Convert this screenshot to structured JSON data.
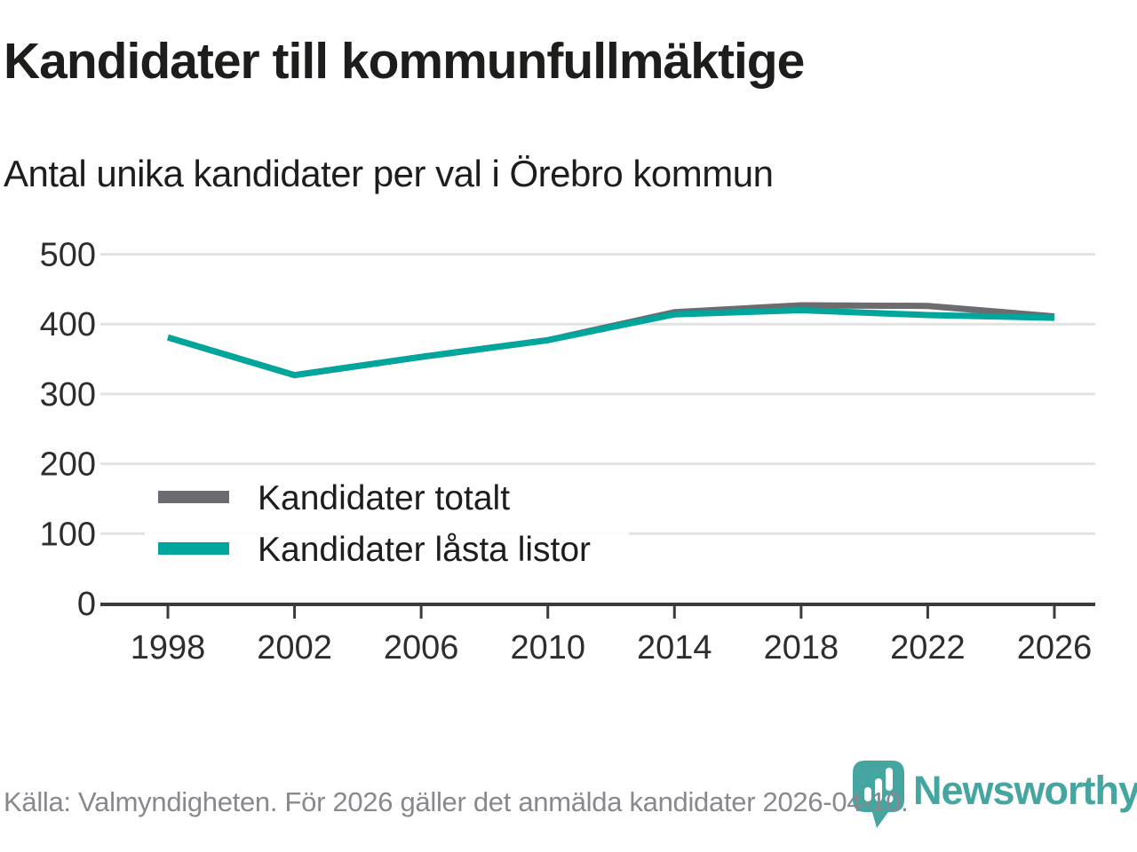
{
  "header": {
    "title": "Kandidater till kommunfullmäktige",
    "subtitle": "Antal unika kandidater per val i Örebro kommun"
  },
  "footer": {
    "source": "Källa: Valmyndigheten. För 2026 gäller det anmälda kandidater 2026-04-10."
  },
  "logo": {
    "brand": "Newsworthy"
  },
  "colors": {
    "accent_teal": "#00a59b",
    "series_gray": "#6b6b70",
    "logo_teal": "#45a5a1",
    "grid": "#e3e3e3",
    "axis": "#3b3b3b",
    "tick_label": "#2d2d2d",
    "text_dark": "#1d1d1b",
    "footer_text": "#88888f",
    "background": "#ffffff"
  },
  "chart_data": {
    "type": "line",
    "title": "Kandidater till kommunfullmäktige",
    "subtitle": "Antal unika kandidater per val i Örebro kommun",
    "categories": [
      "1998",
      "2002",
      "2006",
      "2010",
      "2014",
      "2018",
      "2022",
      "2026"
    ],
    "series": [
      {
        "name": "Kandidater totalt",
        "color": "#6b6b70",
        "values": [
          381,
          327,
          353,
          377,
          417,
          427,
          426,
          411
        ]
      },
      {
        "name": "Kandidater låsta listor",
        "color": "#00a59b",
        "values": [
          381,
          327,
          353,
          377,
          414,
          420,
          413,
          409
        ]
      }
    ],
    "xlabel": "",
    "ylabel": "",
    "ylim": [
      0,
      500
    ],
    "yticks": [
      0,
      100,
      200,
      300,
      400,
      500
    ],
    "grid": "horizontal",
    "legend_position": "inside-left-middle"
  }
}
